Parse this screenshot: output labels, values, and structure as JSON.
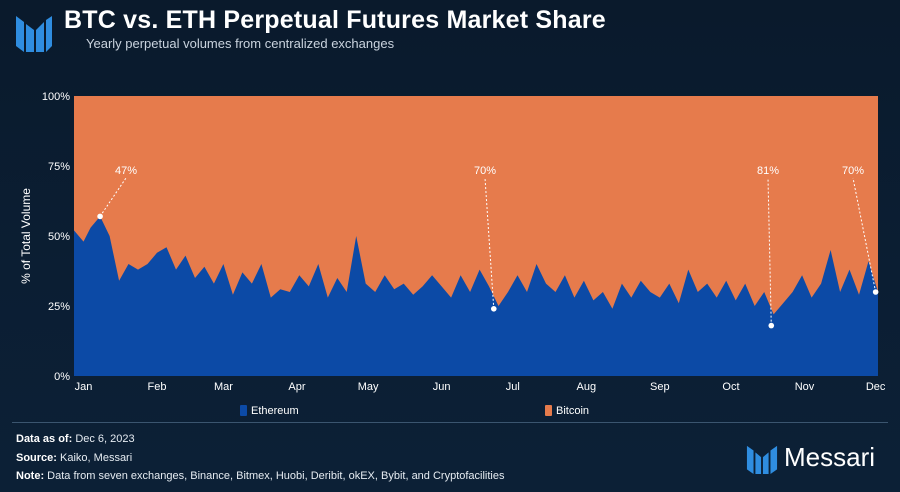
{
  "header": {
    "title": "BTC vs. ETH Perpetual Futures Market Share",
    "subtitle": "Yearly perpetual volumes from centralized exchanges"
  },
  "footer": {
    "data_as_of_label": "Data as of:",
    "data_as_of_value": "Dec 6, 2023",
    "source_label": "Source:",
    "source_value": "Kaiko, Messari",
    "note_label": "Note:",
    "note_value": "Data from seven exchanges, Binance, Bitmex, Huobi, Deribit, okEX, Bybit, and Cryptofacilities",
    "brand_name": "Messari"
  },
  "colors": {
    "ethereum": "#0c4aa6",
    "bitcoin": "#e67b4c",
    "axis_text": "#ffffff"
  },
  "chart_data": {
    "type": "area",
    "stacked": true,
    "normalized": true,
    "ylabel": "% of Total Volume",
    "ylim": [
      0,
      100
    ],
    "yticks": [
      "0%",
      "25%",
      "50%",
      "75%",
      "100%"
    ],
    "xticks": [
      "Jan",
      "Feb",
      "Mar",
      "Apr",
      "May",
      "Jun",
      "Jul",
      "Aug",
      "Sep",
      "Oct",
      "Nov",
      "Dec"
    ],
    "x_range": [
      "2023-01-01",
      "2023-12-06"
    ],
    "legend_position": "bottom",
    "series": [
      {
        "name": "Ethereum",
        "color": "#0c4aa6",
        "x": [
          "2023-01-01",
          "2023-01-05",
          "2023-01-08",
          "2023-01-12",
          "2023-01-16",
          "2023-01-20",
          "2023-01-24",
          "2023-01-28",
          "2023-02-01",
          "2023-02-05",
          "2023-02-09",
          "2023-02-13",
          "2023-02-17",
          "2023-02-21",
          "2023-02-25",
          "2023-03-01",
          "2023-03-05",
          "2023-03-09",
          "2023-03-13",
          "2023-03-17",
          "2023-03-21",
          "2023-03-25",
          "2023-03-29",
          "2023-04-02",
          "2023-04-06",
          "2023-04-10",
          "2023-04-14",
          "2023-04-18",
          "2023-04-22",
          "2023-04-26",
          "2023-04-30",
          "2023-05-04",
          "2023-05-08",
          "2023-05-12",
          "2023-05-16",
          "2023-05-20",
          "2023-05-24",
          "2023-05-28",
          "2023-06-01",
          "2023-06-05",
          "2023-06-09",
          "2023-06-13",
          "2023-06-17",
          "2023-06-21",
          "2023-06-25",
          "2023-06-29",
          "2023-07-03",
          "2023-07-07",
          "2023-07-11",
          "2023-07-15",
          "2023-07-19",
          "2023-07-23",
          "2023-07-27",
          "2023-07-31",
          "2023-08-04",
          "2023-08-08",
          "2023-08-12",
          "2023-08-16",
          "2023-08-20",
          "2023-08-24",
          "2023-08-28",
          "2023-09-01",
          "2023-09-05",
          "2023-09-09",
          "2023-09-13",
          "2023-09-17",
          "2023-09-21",
          "2023-09-25",
          "2023-09-29",
          "2023-10-03",
          "2023-10-07",
          "2023-10-11",
          "2023-10-15",
          "2023-10-19",
          "2023-10-23",
          "2023-10-27",
          "2023-10-31",
          "2023-11-04",
          "2023-11-08",
          "2023-11-12",
          "2023-11-16",
          "2023-11-20",
          "2023-11-24",
          "2023-11-28",
          "2023-12-02",
          "2023-12-06"
        ],
        "values": [
          52,
          48,
          53,
          57,
          50,
          34,
          40,
          38,
          40,
          44,
          46,
          38,
          43,
          35,
          39,
          33,
          40,
          29,
          37,
          33,
          40,
          28,
          31,
          30,
          36,
          32,
          40,
          28,
          35,
          30,
          50,
          33,
          30,
          36,
          31,
          33,
          29,
          32,
          36,
          32,
          28,
          36,
          30,
          38,
          32,
          25,
          30,
          36,
          30,
          40,
          33,
          30,
          36,
          28,
          34,
          27,
          30,
          24,
          33,
          28,
          34,
          30,
          28,
          33,
          26,
          38,
          30,
          33,
          28,
          34,
          27,
          33,
          25,
          30,
          22,
          26,
          30,
          36,
          28,
          33,
          45,
          30,
          38,
          29,
          41,
          30
        ]
      },
      {
        "name": "Bitcoin",
        "color": "#e67b4c",
        "x": [
          "2023-01-01",
          "2023-12-06"
        ],
        "values": [
          "remainder to 100%",
          "remainder to 100%"
        ]
      }
    ],
    "annotations": [
      {
        "text": "47%",
        "x": "2023-01-12",
        "y": 57
      },
      {
        "text": "70%",
        "x": "2023-06-27",
        "y": 24
      },
      {
        "text": "81%",
        "x": "2023-10-22",
        "y": 18
      },
      {
        "text": "70%",
        "x": "2023-12-05",
        "y": 30
      }
    ]
  }
}
